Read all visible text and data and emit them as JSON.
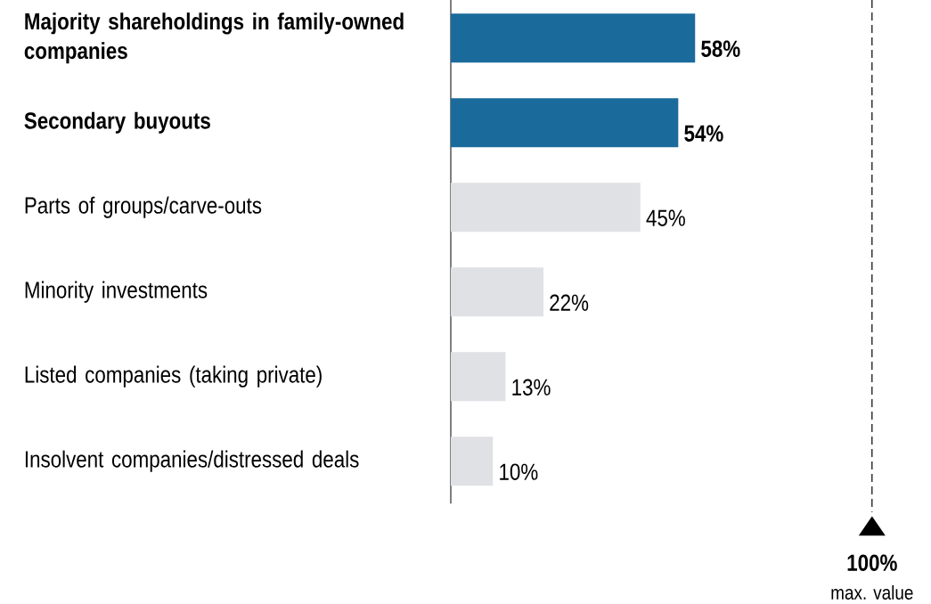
{
  "chart_data": {
    "type": "bar",
    "orientation": "horizontal",
    "categories": [
      "**Majority shareholdings in family-owned companies**",
      "**Secondary buyouts**",
      "Parts of groups/carve-outs",
      "Minority investments",
      "Listed companies (taking private)",
      "Insolvent companies/distressed deals"
    ],
    "values": [
      58,
      54,
      45,
      22,
      13,
      10
    ],
    "colors": [
      "#1a6b9c",
      "#1a6b9c",
      "#e0e1e5",
      "#e0e1e5",
      "#e0e1e5",
      "#e0e1e5"
    ],
    "value_labels": [
      "**58%**",
      "**54%**",
      "45%",
      "22%",
      "13%",
      "10%"
    ],
    "tick_labels": "y",
    "ref_lines": [
      {
        "axis": "x",
        "value": 100,
        "label": "**100%**",
        "line_style": "dashed",
        "color": "#000000"
      }
    ],
    "annotations": [
      "max. value"
    ]
  }
}
